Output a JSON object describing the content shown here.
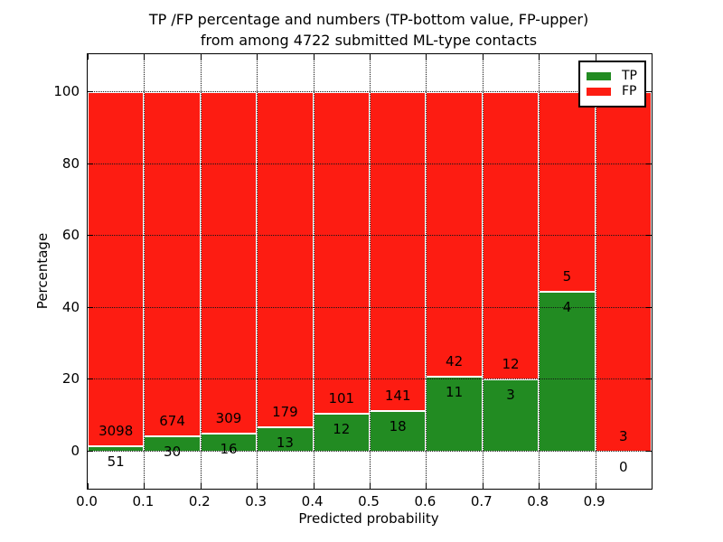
{
  "figure": {
    "title_line1": "TP /FP percentage and numbers (TP-bottom value, FP-upper)",
    "title_line2": "from among 4722 submitted ML-type contacts"
  },
  "chart_data": {
    "type": "bar",
    "stacked": true,
    "title": "TP /FP percentage and numbers (TP-bottom value, FP-upper) from among 4722 submitted ML-type contacts",
    "xlabel": "Predicted probability",
    "ylabel": "Percentage",
    "total_contacts": 4722,
    "bin_width": 0.1,
    "x_bin_starts": [
      0.0,
      0.1,
      0.2,
      0.3,
      0.4,
      0.5,
      0.6,
      0.7,
      0.8,
      0.9
    ],
    "x_tick_labels": [
      "0.0",
      "0.1",
      "0.2",
      "0.3",
      "0.4",
      "0.5",
      "0.6",
      "0.7",
      "0.8",
      "0.9"
    ],
    "y_ticks": [
      0,
      20,
      40,
      60,
      80,
      100
    ],
    "y_tick_labels": [
      "0",
      "20",
      "40",
      "60",
      "80",
      "100"
    ],
    "xlim": [
      0.0,
      1.0
    ],
    "ylim": [
      -10.3,
      110.5
    ],
    "grid": true,
    "series": [
      {
        "name": "TP",
        "color": "#228b22",
        "counts": [
          51,
          30,
          16,
          13,
          12,
          18,
          11,
          3,
          4,
          0
        ]
      },
      {
        "name": "FP",
        "color": "#fd1c12",
        "counts": [
          3098,
          674,
          309,
          179,
          101,
          141,
          42,
          12,
          5,
          3
        ]
      }
    ],
    "tp_percentages": [
      1.62,
      4.26,
      4.92,
      6.77,
      10.62,
      11.32,
      20.75,
      20.0,
      44.44,
      0.0
    ],
    "fp_percentages": [
      98.38,
      95.74,
      95.08,
      93.23,
      89.38,
      88.68,
      79.25,
      80.0,
      55.56,
      100.0
    ],
    "legend": {
      "position": "upper right",
      "entries": [
        "TP",
        "FP"
      ]
    }
  }
}
